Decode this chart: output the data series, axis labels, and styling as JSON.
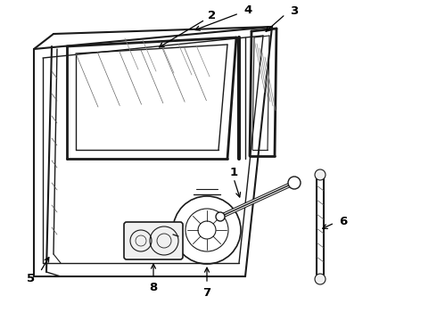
{
  "background_color": "#ffffff",
  "line_color": "#1a1a1a",
  "label_color": "#000000",
  "fig_width": 4.9,
  "fig_height": 3.6,
  "dpi": 100
}
